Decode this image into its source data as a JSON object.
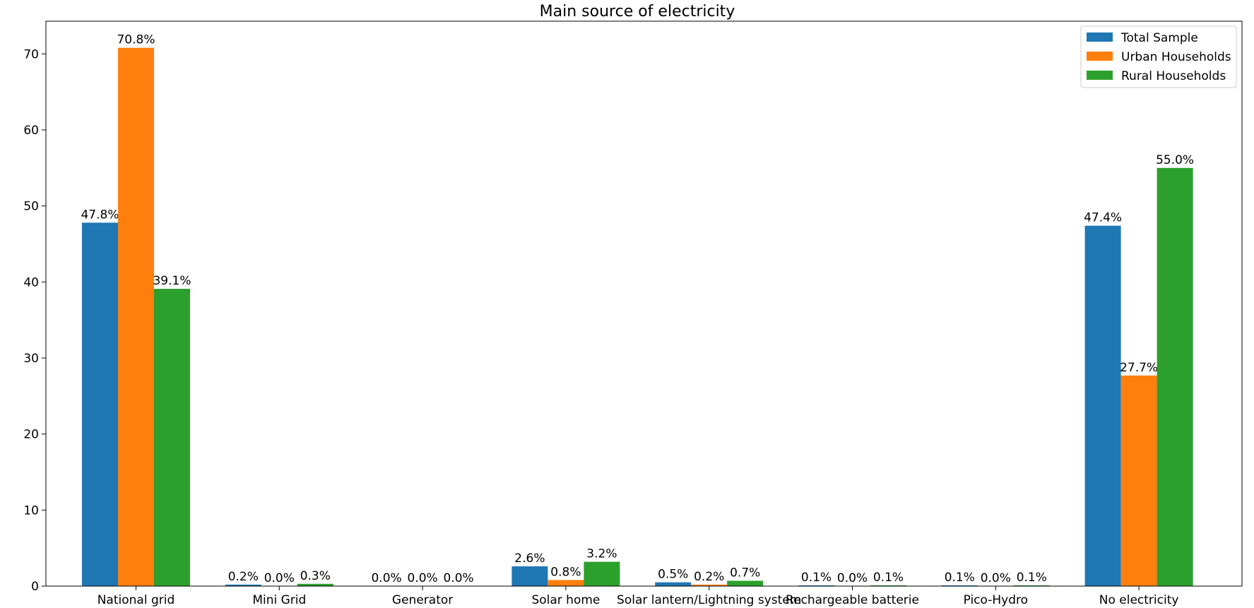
{
  "chart_data": {
    "type": "bar",
    "title": "Main source of electricity",
    "xlabel": "",
    "ylabel": "",
    "ylim": [
      0,
      74.3
    ],
    "yticks": [
      0,
      10,
      20,
      30,
      40,
      50,
      60,
      70
    ],
    "grid": false,
    "legend_position": "top-right",
    "categories": [
      "National grid",
      "Mini Grid",
      "Generator",
      "Solar home",
      "Solar lantern/Lightning system",
      "Rechargeable batterie",
      "Pico-Hydro",
      "No electricity"
    ],
    "series": [
      {
        "name": "Total Sample",
        "color": "#1f77b4",
        "values": [
          47.8,
          0.2,
          0.0,
          2.6,
          0.5,
          0.1,
          0.1,
          47.4
        ],
        "labels": [
          "47.8%",
          "0.2%",
          "0.0%",
          "2.6%",
          "0.5%",
          "0.1%",
          "0.1%",
          "47.4%"
        ]
      },
      {
        "name": "Urban Households",
        "color": "#ff7f0e",
        "values": [
          70.8,
          0.0,
          0.0,
          0.8,
          0.2,
          0.0,
          0.0,
          27.7
        ],
        "labels": [
          "70.8%",
          "0.0%",
          "0.0%",
          "0.8%",
          "0.2%",
          "0.0%",
          "0.0%",
          "27.7%"
        ]
      },
      {
        "name": "Rural Households",
        "color": "#2ca02c",
        "values": [
          39.1,
          0.3,
          0.0,
          3.2,
          0.7,
          0.1,
          0.1,
          55.0
        ],
        "labels": [
          "39.1%",
          "0.3%",
          "0.0%",
          "3.2%",
          "0.7%",
          "0.1%",
          "0.1%",
          "55.0%"
        ]
      }
    ]
  }
}
